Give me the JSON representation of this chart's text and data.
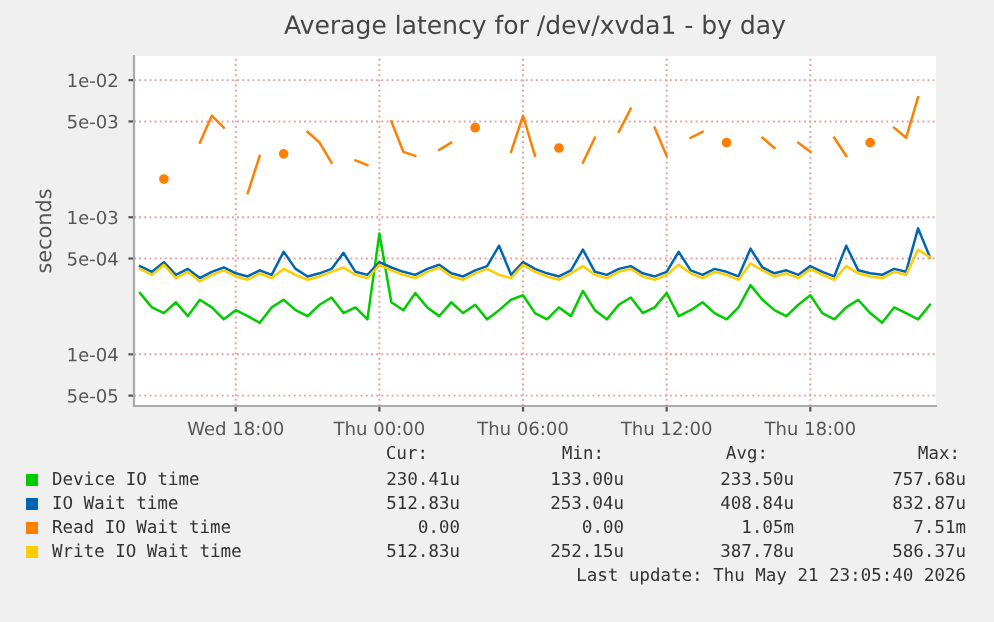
{
  "chart_data": {
    "type": "line",
    "title": "Average latency for /dev/xvda1 - by day",
    "ylabel": "seconds",
    "log": "y",
    "grid": true,
    "legend": "bottom",
    "marker": "none",
    "line_style": "solid",
    "x": [
      "2026-05-20T14:00",
      "2026-05-20T14:30",
      "2026-05-20T15:00",
      "2026-05-20T15:30",
      "2026-05-20T16:00",
      "2026-05-20T16:30",
      "2026-05-20T17:00",
      "2026-05-20T17:30",
      "2026-05-20T18:00",
      "2026-05-20T18:30",
      "2026-05-20T19:00",
      "2026-05-20T19:30",
      "2026-05-20T20:00",
      "2026-05-20T20:30",
      "2026-05-20T21:00",
      "2026-05-20T21:30",
      "2026-05-20T22:00",
      "2026-05-20T22:30",
      "2026-05-20T23:00",
      "2026-05-20T23:30",
      "2026-05-21T00:00",
      "2026-05-21T00:30",
      "2026-05-21T01:00",
      "2026-05-21T01:30",
      "2026-05-21T02:00",
      "2026-05-21T02:30",
      "2026-05-21T03:00",
      "2026-05-21T03:30",
      "2026-05-21T04:00",
      "2026-05-21T04:30",
      "2026-05-21T05:00",
      "2026-05-21T05:30",
      "2026-05-21T06:00",
      "2026-05-21T06:30",
      "2026-05-21T07:00",
      "2026-05-21T07:30",
      "2026-05-21T08:00",
      "2026-05-21T08:30",
      "2026-05-21T09:00",
      "2026-05-21T09:30",
      "2026-05-21T10:00",
      "2026-05-21T10:30",
      "2026-05-21T11:00",
      "2026-05-21T11:30",
      "2026-05-21T12:00",
      "2026-05-21T12:30",
      "2026-05-21T13:00",
      "2026-05-21T13:30",
      "2026-05-21T14:00",
      "2026-05-21T14:30",
      "2026-05-21T15:00",
      "2026-05-21T15:30",
      "2026-05-21T16:00",
      "2026-05-21T16:30",
      "2026-05-21T17:00",
      "2026-05-21T17:30",
      "2026-05-21T18:00",
      "2026-05-21T18:30",
      "2026-05-21T19:00",
      "2026-05-21T19:30",
      "2026-05-21T20:00",
      "2026-05-21T20:30",
      "2026-05-21T21:00",
      "2026-05-21T21:30",
      "2026-05-21T22:00",
      "2026-05-21T22:30",
      "2026-05-21T23:00"
    ],
    "xlim": [
      "2026-05-20T13:45",
      "2026-05-21T23:15"
    ],
    "xticks": [
      {
        "value": "2026-05-20T18:00",
        "label": "Wed 18:00"
      },
      {
        "value": "2026-05-21T00:00",
        "label": "Thu 00:00"
      },
      {
        "value": "2026-05-21T06:00",
        "label": "Thu 06:00"
      },
      {
        "value": "2026-05-21T12:00",
        "label": "Thu 12:00"
      },
      {
        "value": "2026-05-21T18:00",
        "label": "Thu 18:00"
      }
    ],
    "ylim": [
      4.2e-05,
      0.015
    ],
    "yticks": [
      {
        "value": 5e-05,
        "label": "5e-05"
      },
      {
        "value": 0.0001,
        "label": "1e-04"
      },
      {
        "value": 0.0005,
        "label": "5e-04"
      },
      {
        "value": 0.001,
        "label": "1e-03"
      },
      {
        "value": 0.005,
        "label": "5e-03"
      },
      {
        "value": 0.01,
        "label": "1e-02"
      }
    ],
    "series": [
      {
        "name": "Device IO time",
        "color": "#00cc00",
        "values": [
          0.00028,
          0.00022,
          0.0002,
          0.00024,
          0.00019,
          0.00025,
          0.00022,
          0.00018,
          0.00021,
          0.00019,
          0.00017,
          0.00022,
          0.00025,
          0.00021,
          0.00019,
          0.00023,
          0.00026,
          0.0002,
          0.00022,
          0.00018,
          0.00076,
          0.00024,
          0.00021,
          0.00028,
          0.00022,
          0.00019,
          0.00024,
          0.0002,
          0.00023,
          0.00018,
          0.00021,
          0.00025,
          0.00027,
          0.0002,
          0.00018,
          0.00022,
          0.00019,
          0.00029,
          0.00021,
          0.00018,
          0.00023,
          0.00026,
          0.0002,
          0.00022,
          0.00028,
          0.00019,
          0.00021,
          0.00024,
          0.0002,
          0.00018,
          0.00022,
          0.00032,
          0.00025,
          0.00021,
          0.00019,
          0.00023,
          0.00027,
          0.0002,
          0.00018,
          0.00022,
          0.00025,
          0.0002,
          0.00017,
          0.00022,
          0.0002,
          0.00018,
          0.00023
        ]
      },
      {
        "name": "IO Wait time",
        "color": "#0066b3",
        "values": [
          0.00044,
          0.0004,
          0.00047,
          0.00038,
          0.00042,
          0.00036,
          0.0004,
          0.00043,
          0.00039,
          0.00037,
          0.00041,
          0.00038,
          0.00056,
          0.00042,
          0.00037,
          0.00039,
          0.00042,
          0.00055,
          0.0004,
          0.00038,
          0.00047,
          0.00043,
          0.0004,
          0.00038,
          0.00042,
          0.00045,
          0.00039,
          0.00037,
          0.00041,
          0.00044,
          0.00062,
          0.00038,
          0.00047,
          0.00042,
          0.00039,
          0.00037,
          0.00041,
          0.00058,
          0.0004,
          0.00038,
          0.00042,
          0.00044,
          0.00039,
          0.00037,
          0.0004,
          0.00056,
          0.00041,
          0.00038,
          0.00042,
          0.0004,
          0.00037,
          0.00059,
          0.00043,
          0.00039,
          0.00041,
          0.00038,
          0.00044,
          0.0004,
          0.00037,
          0.00062,
          0.00041,
          0.00039,
          0.00038,
          0.00042,
          0.0004,
          0.00083,
          0.00051
        ]
      },
      {
        "name": "Read IO Wait time",
        "color": "#ff8000",
        "values": [
          null,
          null,
          0.0019,
          null,
          null,
          0.0035,
          0.0055,
          0.0045,
          null,
          0.0015,
          0.0028,
          null,
          0.0029,
          null,
          0.0042,
          0.0035,
          0.0025,
          null,
          0.0026,
          0.0024,
          null,
          0.005,
          0.003,
          0.0028,
          null,
          0.0031,
          0.0035,
          null,
          0.0045,
          null,
          null,
          0.003,
          0.0055,
          0.0028,
          null,
          0.0032,
          null,
          0.0025,
          0.0038,
          null,
          0.0042,
          0.0062,
          null,
          0.0045,
          0.0028,
          null,
          0.0038,
          0.0042,
          null,
          0.0035,
          null,
          null,
          0.0038,
          0.0032,
          null,
          0.0035,
          0.003,
          null,
          0.0038,
          0.0028,
          null,
          0.0035,
          null,
          0.0045,
          0.0038,
          0.0075,
          null
        ]
      },
      {
        "name": "Write IO Wait time",
        "color": "#ffcc00",
        "values": [
          0.00042,
          0.00038,
          0.00045,
          0.00036,
          0.0004,
          0.00034,
          0.00038,
          0.00041,
          0.00037,
          0.00035,
          0.00039,
          0.00036,
          0.00042,
          0.00038,
          0.00035,
          0.00037,
          0.0004,
          0.00043,
          0.00038,
          0.00036,
          0.00045,
          0.00041,
          0.00038,
          0.00036,
          0.0004,
          0.00043,
          0.00037,
          0.00035,
          0.00039,
          0.00042,
          0.00038,
          0.00036,
          0.00045,
          0.0004,
          0.00037,
          0.00035,
          0.00039,
          0.00044,
          0.00038,
          0.00036,
          0.0004,
          0.00042,
          0.00037,
          0.00035,
          0.00038,
          0.00045,
          0.00039,
          0.00036,
          0.0004,
          0.00038,
          0.00035,
          0.00046,
          0.00041,
          0.00037,
          0.00039,
          0.00036,
          0.00042,
          0.00038,
          0.00035,
          0.00044,
          0.00039,
          0.00037,
          0.00036,
          0.0004,
          0.00038,
          0.00058,
          0.00051
        ]
      }
    ],
    "annotations": [
      "Cur:",
      "Min:",
      "Avg:",
      "Max:",
      "230.41u",
      "133.00u",
      "233.50u",
      "757.68u",
      "512.83u",
      "253.04u",
      "408.84u",
      "832.87u",
      "0.00",
      "0.00",
      "1.05m",
      "7.51m",
      "512.83u",
      "252.15u",
      "387.78u",
      "586.37u",
      "Last update: Thu May 21 23:05:40 2026"
    ]
  }
}
